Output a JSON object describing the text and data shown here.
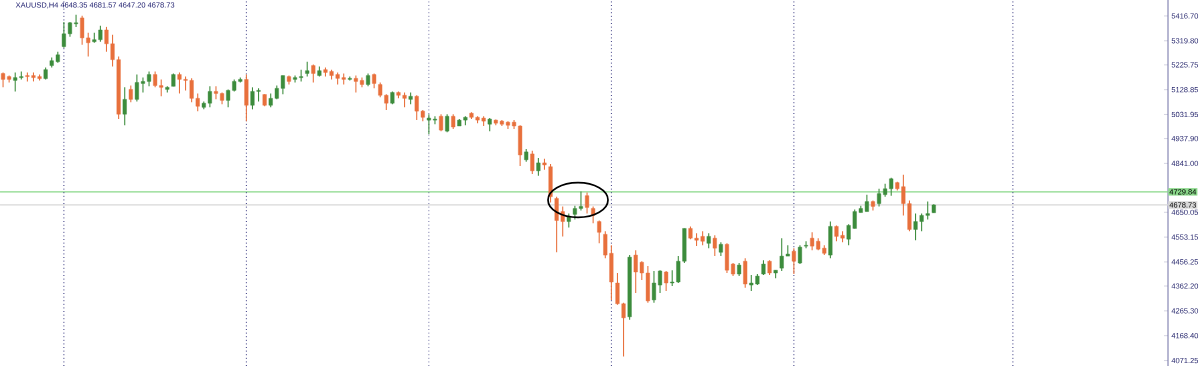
{
  "chart_data": {
    "type": "candlestick",
    "title": "XAUUSD,H4  4648.35 4681.57 4647.20 4678.73",
    "categories": [
      null,
      null,
      null,
      null,
      null,
      null,
      null,
      null,
      null,
      null,
      null,
      null,
      null,
      null,
      null,
      null,
      null,
      null,
      null,
      null,
      null,
      null,
      null,
      null,
      null,
      null,
      null,
      null,
      null,
      null,
      null,
      null,
      null,
      null,
      null,
      null,
      null,
      null,
      null,
      null,
      null,
      null,
      null,
      null,
      null,
      null,
      null,
      null,
      null,
      null,
      null,
      null,
      null,
      null,
      null,
      null,
      null,
      null,
      null,
      null,
      null,
      null,
      null,
      null,
      null,
      null,
      null,
      null,
      null,
      null,
      null,
      null,
      null,
      null,
      null,
      null,
      null,
      null,
      null,
      null,
      null,
      null,
      null,
      null,
      null,
      null,
      null,
      null,
      null,
      null,
      null,
      null,
      null,
      null,
      null,
      null,
      null,
      null,
      null,
      null,
      null,
      null,
      null,
      null,
      null,
      null,
      null,
      null,
      null,
      null,
      null,
      null,
      null,
      null,
      null,
      null,
      null,
      null,
      null,
      null,
      null,
      null,
      null,
      null,
      null,
      null,
      null,
      null,
      null,
      null,
      null,
      null,
      null,
      null,
      null,
      null,
      null,
      null,
      null,
      null,
      null,
      null,
      null,
      null,
      null,
      null,
      null,
      null,
      null,
      null,
      null,
      null,
      null,
      null,
      null,
      null,
      null,
      null,
      null,
      null,
      null,
      null,
      null,
      null,
      null,
      null,
      null,
      null,
      null,
      null,
      null,
      null,
      null,
      null,
      null,
      null,
      null,
      null,
      null,
      null,
      null,
      null,
      null,
      null,
      null,
      null,
      null,
      null,
      null,
      null,
      null,
      null
    ],
    "ohlc": [
      [
        5192,
        5196,
        5138,
        5169
      ],
      [
        5180,
        5184,
        5157,
        5169
      ],
      [
        5165,
        5196,
        5122,
        5176
      ],
      [
        5176,
        5200,
        5169,
        5180
      ],
      [
        5184,
        5196,
        5161,
        5180
      ],
      [
        5184,
        5196,
        5161,
        5176
      ],
      [
        5180,
        5188,
        5165,
        5172
      ],
      [
        5172,
        5215,
        5169,
        5207
      ],
      [
        5223,
        5254,
        5215,
        5242
      ],
      [
        5238,
        5277,
        5234,
        5265
      ],
      [
        5297,
        5393,
        5293,
        5347
      ],
      [
        5347,
        5393,
        5335,
        5390
      ],
      [
        5386,
        5421,
        5374,
        5390
      ],
      [
        5409,
        5417,
        5304,
        5331
      ],
      [
        5331,
        5351,
        5258,
        5312
      ],
      [
        5316,
        5351,
        5312,
        5324
      ],
      [
        5324,
        5378,
        5316,
        5362
      ],
      [
        5362,
        5374,
        5277,
        5308
      ],
      [
        5308,
        5343,
        5219,
        5246
      ],
      [
        5246,
        5258,
        5014,
        5033
      ],
      [
        5033,
        5138,
        4990,
        5091
      ],
      [
        5130,
        5145,
        5080,
        5091
      ],
      [
        5091,
        5188,
        5083,
        5157
      ],
      [
        5153,
        5176,
        5118,
        5161
      ],
      [
        5161,
        5200,
        5142,
        5188
      ],
      [
        5188,
        5200,
        5138,
        5145
      ],
      [
        5145,
        5169,
        5103,
        5138
      ],
      [
        5130,
        5142,
        5118,
        5138
      ],
      [
        5142,
        5192,
        5142,
        5188
      ],
      [
        5188,
        5196,
        5114,
        5169
      ],
      [
        5169,
        5180,
        5126,
        5165
      ],
      [
        5165,
        5173,
        5080,
        5095
      ],
      [
        5095,
        5114,
        5045,
        5064
      ],
      [
        5060,
        5083,
        5052,
        5076
      ],
      [
        5076,
        5142,
        5060,
        5122
      ],
      [
        5122,
        5142,
        5091,
        5114
      ],
      [
        5114,
        5118,
        5072,
        5087
      ],
      [
        5087,
        5130,
        5060,
        5126
      ],
      [
        5126,
        5169,
        5122,
        5161
      ],
      [
        5161,
        5176,
        5157,
        5169
      ],
      [
        5169,
        5188,
        5006,
        5068
      ],
      [
        5068,
        5138,
        5052,
        5122
      ],
      [
        5122,
        5134,
        5083,
        5126
      ],
      [
        5110,
        5111,
        5064,
        5068
      ],
      [
        5068,
        5114,
        5060,
        5095
      ],
      [
        5095,
        5145,
        5091,
        5134
      ],
      [
        5134,
        5184,
        5111,
        5184
      ],
      [
        5180,
        5184,
        5149,
        5161
      ],
      [
        5169,
        5184,
        5157,
        5176
      ],
      [
        5176,
        5207,
        5161,
        5180
      ],
      [
        5192,
        5238,
        5180,
        5203
      ],
      [
        5223,
        5227,
        5157,
        5192
      ],
      [
        5184,
        5219,
        5180,
        5203
      ],
      [
        5207,
        5215,
        5180,
        5196
      ],
      [
        5200,
        5207,
        5169,
        5184
      ],
      [
        5188,
        5196,
        5149,
        5173
      ],
      [
        5176,
        5192,
        5149,
        5169
      ],
      [
        5169,
        5180,
        5165,
        5173
      ],
      [
        5173,
        5184,
        5118,
        5161
      ],
      [
        5165,
        5176,
        5138,
        5149
      ],
      [
        5149,
        5192,
        5142,
        5184
      ],
      [
        5188,
        5192,
        5134,
        5153
      ],
      [
        5149,
        5157,
        5099,
        5107
      ],
      [
        5107,
        5111,
        5049,
        5076
      ],
      [
        5076,
        5122,
        5072,
        5118
      ],
      [
        5118,
        5122,
        5095,
        5107
      ],
      [
        5107,
        5118,
        5060,
        5095
      ],
      [
        5091,
        5118,
        5072,
        5103
      ],
      [
        5103,
        5107,
        5010,
        5045
      ],
      [
        5045,
        5049,
        5006,
        5021
      ],
      [
        5010,
        5033,
        4955,
        5018
      ],
      [
        5010,
        5025,
        4994,
        5014
      ],
      [
        5025,
        5033,
        4967,
        4971
      ],
      [
        4967,
        5033,
        4963,
        5025
      ],
      [
        5025,
        5033,
        4975,
        4983
      ],
      [
        4987,
        5014,
        4987,
        5010
      ],
      [
        5010,
        5025,
        4990,
        5021
      ],
      [
        5037,
        5041,
        5014,
        5021
      ],
      [
        5021,
        5025,
        4998,
        5010
      ],
      [
        5018,
        5025,
        4987,
        5006
      ],
      [
        4994,
        5018,
        4967,
        5014
      ],
      [
        5010,
        5012,
        4990,
        4998
      ],
      [
        5006,
        5010,
        4987,
        4994
      ],
      [
        5002,
        5006,
        4975,
        4990
      ],
      [
        5002,
        5010,
        4975,
        4987
      ],
      [
        4987,
        4990,
        4831,
        4874
      ],
      [
        4855,
        4897,
        4847,
        4886
      ],
      [
        4878,
        4890,
        4800,
        4812
      ],
      [
        4812,
        4862,
        4793,
        4843
      ],
      [
        4843,
        4859,
        4816,
        4835
      ],
      [
        4828,
        4839,
        4688,
        4711
      ],
      [
        4704,
        4711,
        4494,
        4618
      ],
      [
        4653,
        4673,
        4556,
        4614
      ],
      [
        4614,
        4645,
        4591,
        4634
      ],
      [
        4642,
        4676,
        4622,
        4665
      ],
      [
        4665,
        4731,
        4657,
        4673
      ],
      [
        4715,
        4727,
        4645,
        4669
      ],
      [
        4665,
        4673,
        4607,
        4638
      ],
      [
        4614,
        4618,
        4529,
        4572
      ],
      [
        4564,
        4576,
        4471,
        4483
      ],
      [
        4490,
        4521,
        4308,
        4378
      ],
      [
        4374,
        4413,
        4289,
        4293
      ],
      [
        4293,
        4297,
        4087,
        4238
      ],
      [
        4242,
        4483,
        4231,
        4475
      ],
      [
        4483,
        4502,
        4335,
        4417
      ],
      [
        4455,
        4459,
        4386,
        4413
      ],
      [
        4413,
        4440,
        4297,
        4304
      ],
      [
        4308,
        4421,
        4297,
        4374
      ],
      [
        4366,
        4424,
        4335,
        4421
      ],
      [
        4417,
        4421,
        4343,
        4374
      ],
      [
        4374,
        4424,
        4362,
        4378
      ],
      [
        4378,
        4479,
        4374,
        4459
      ],
      [
        4459,
        4587,
        4452,
        4587
      ],
      [
        4587,
        4595,
        4545,
        4549
      ],
      [
        4549,
        4568,
        4518,
        4541
      ],
      [
        4556,
        4576,
        4521,
        4537
      ],
      [
        4529,
        4568,
        4510,
        4556
      ],
      [
        4549,
        4560,
        4479,
        4510
      ],
      [
        4494,
        4533,
        4479,
        4525
      ],
      [
        4525,
        4529,
        4413,
        4424
      ],
      [
        4448,
        4452,
        4401,
        4409
      ],
      [
        4409,
        4452,
        4401,
        4444
      ],
      [
        4459,
        4471,
        4355,
        4370
      ],
      [
        4366,
        4405,
        4343,
        4374
      ],
      [
        4370,
        4409,
        4366,
        4401
      ],
      [
        4409,
        4463,
        4405,
        4448
      ],
      [
        4459,
        4463,
        4405,
        4413
      ],
      [
        4413,
        4424,
        4393,
        4424
      ],
      [
        4432,
        4549,
        4421,
        4479
      ],
      [
        4479,
        4521,
        4479,
        4487
      ],
      [
        4498,
        4510,
        4409,
        4459
      ],
      [
        4452,
        4521,
        4448,
        4514
      ],
      [
        4518,
        4537,
        4510,
        4521
      ],
      [
        4549,
        4572,
        4502,
        4518
      ],
      [
        4537,
        4549,
        4502,
        4506
      ],
      [
        4510,
        4521,
        4483,
        4490
      ],
      [
        4483,
        4614,
        4471,
        4595
      ],
      [
        4595,
        4599,
        4537,
        4556
      ],
      [
        4560,
        4576,
        4533,
        4549
      ],
      [
        4545,
        4603,
        4521,
        4599
      ],
      [
        4587,
        4661,
        4587,
        4653
      ],
      [
        4649,
        4676,
        4649,
        4665
      ],
      [
        4653,
        4719,
        4653,
        4692
      ],
      [
        4692,
        4696,
        4657,
        4673
      ],
      [
        4684,
        4742,
        4673,
        4723
      ],
      [
        4719,
        4762,
        4711,
        4742
      ],
      [
        4742,
        4785,
        4715,
        4781
      ],
      [
        4766,
        4769,
        4735,
        4742
      ],
      [
        4750,
        4797,
        4638,
        4684
      ],
      [
        4684,
        4696,
        4576,
        4583
      ],
      [
        4583,
        4645,
        4541,
        4614
      ],
      [
        4614,
        4645,
        4576,
        4638
      ],
      [
        4638,
        4692,
        4622,
        4645
      ],
      [
        4648.35,
        4681.57,
        4647.2,
        4678.73
      ],
      null,
      null,
      null,
      null,
      null,
      null,
      null,
      null,
      null,
      null,
      null,
      null,
      null,
      null,
      null,
      null,
      null,
      null,
      null,
      null,
      null,
      null,
      null,
      null,
      null,
      null,
      null,
      null,
      null,
      null,
      null,
      null,
      null,
      null,
      null,
      null,
      null,
      null
    ],
    "colors": [
      "#e8703c",
      "#e8703c",
      "#3c8c3c",
      "#3c8c3c",
      "#e8703c",
      "#e8703c",
      "#e8703c",
      "#3c8c3c",
      "#3c8c3c",
      "#3c8c3c",
      "#3c8c3c",
      "#3c8c3c",
      "#3c8c3c",
      "#e8703c",
      "#e8703c",
      "#3c8c3c",
      "#3c8c3c",
      "#e8703c",
      "#e8703c",
      "#e8703c",
      "#3c8c3c",
      "#e8703c",
      "#3c8c3c",
      "#3c8c3c",
      "#3c8c3c",
      "#e8703c",
      "#e8703c",
      "#3c8c3c",
      "#3c8c3c",
      "#e8703c",
      "#e8703c",
      "#e8703c",
      "#e8703c",
      "#3c8c3c",
      "#3c8c3c",
      "#e8703c",
      "#e8703c",
      "#3c8c3c",
      "#3c8c3c",
      "#3c8c3c",
      "#e8703c",
      "#3c8c3c",
      "#3c8c3c",
      "#e8703c",
      "#3c8c3c",
      "#3c8c3c",
      "#3c8c3c",
      "#e8703c",
      "#3c8c3c",
      "#3c8c3c",
      "#3c8c3c",
      "#e8703c",
      "#3c8c3c",
      "#e8703c",
      "#e8703c",
      "#e8703c",
      "#e8703c",
      "#3c8c3c",
      "#e8703c",
      "#e8703c",
      "#3c8c3c",
      "#e8703c",
      "#e8703c",
      "#e8703c",
      "#3c8c3c",
      "#e8703c",
      "#e8703c",
      "#3c8c3c",
      "#e8703c",
      "#e8703c",
      "#3c8c3c",
      "#3c8c3c",
      "#e8703c",
      "#3c8c3c",
      "#e8703c",
      "#3c8c3c",
      "#3c8c3c",
      "#e8703c",
      "#e8703c",
      "#e8703c",
      "#3c8c3c",
      "#e8703c",
      "#e8703c",
      "#e8703c",
      "#e8703c",
      "#e8703c",
      "#3c8c3c",
      "#e8703c",
      "#3c8c3c",
      "#e8703c",
      "#e8703c",
      "#e8703c",
      "#e8703c",
      "#3c8c3c",
      "#3c8c3c",
      "#3c8c3c",
      "#e8703c",
      "#e8703c",
      "#e8703c",
      "#e8703c",
      "#e8703c",
      "#e8703c",
      "#e8703c",
      "#3c8c3c",
      "#e8703c",
      "#e8703c",
      "#e8703c",
      "#3c8c3c",
      "#3c8c3c",
      "#e8703c",
      "#3c8c3c",
      "#3c8c3c",
      "#3c8c3c",
      "#e8703c",
      "#e8703c",
      "#e8703c",
      "#3c8c3c",
      "#e8703c",
      "#3c8c3c",
      "#e8703c",
      "#e8703c",
      "#3c8c3c",
      "#e8703c",
      "#3c8c3c",
      "#3c8c3c",
      "#3c8c3c",
      "#e8703c",
      "#3c8c3c",
      "#3c8c3c",
      "#3c8c3c",
      "#e8703c",
      "#3c8c3c",
      "#3c8c3c",
      "#e8703c",
      "#e8703c",
      "#e8703c",
      "#3c8c3c",
      "#e8703c",
      "#e8703c",
      "#3c8c3c",
      "#3c8c3c",
      "#3c8c3c",
      "#3c8c3c",
      "#e8703c",
      "#3c8c3c",
      "#3c8c3c",
      "#3c8c3c",
      "#e8703c",
      "#e8703c",
      "#e8703c",
      "#3c8c3c",
      "#3c8c3c",
      "#3c8c3c",
      "#3c8c3c",
      null,
      null,
      null,
      null,
      null,
      null,
      null,
      null,
      null,
      null,
      null,
      null,
      null,
      null,
      null,
      null,
      null,
      null,
      null,
      null,
      null,
      null,
      null,
      null,
      null,
      null,
      null,
      null,
      null,
      null,
      null,
      null,
      null,
      null,
      null,
      null,
      null,
      null
    ],
    "ylim": [
      4050,
      5479
    ],
    "yticks": [
      {
        "value": 5416.7,
        "label": "5416.70"
      },
      {
        "value": 5319.8,
        "label": "5319.80"
      },
      {
        "value": 5225.75,
        "label": "5225.75"
      },
      {
        "value": 5128.85,
        "label": "5128.85"
      },
      {
        "value": 5031.95,
        "label": "5031.95"
      },
      {
        "value": 4937.9,
        "label": "4937.90"
      },
      {
        "value": 4841.0,
        "label": "4841.00"
      },
      {
        "value": 4650.05,
        "label": "4650.05"
      },
      {
        "value": 4553.15,
        "label": "4553.15"
      },
      {
        "value": 4456.25,
        "label": "4456.25"
      },
      {
        "value": 4362.2,
        "label": "4362.20"
      },
      {
        "value": 4265.3,
        "label": "4265.30"
      },
      {
        "value": 4168.4,
        "label": "4168.40"
      },
      {
        "value": 4071.25,
        "label": "4071.25"
      }
    ],
    "tick_labels": "y",
    "ref_lines": [
      {
        "axis": "y",
        "value": 4729.84,
        "label": "4729.84",
        "color": "#8ad88a",
        "line_style": "solid"
      },
      {
        "axis": "y",
        "value": 4678.73,
        "label": "4678.73",
        "color": "#d8d8d8",
        "line_style": "solid"
      }
    ]
  }
}
